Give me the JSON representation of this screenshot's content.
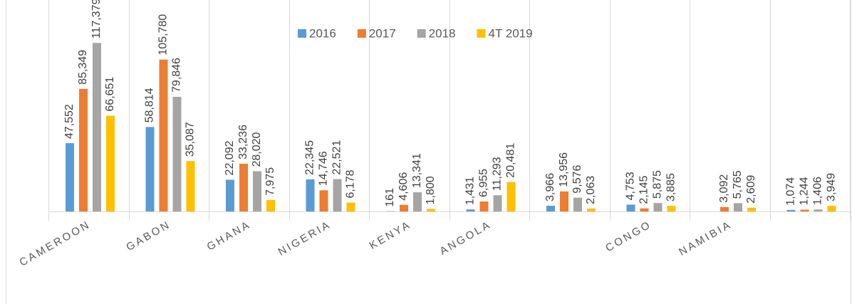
{
  "chart_data": {
    "type": "bar",
    "categories": [
      "CAMEROON",
      "GABON",
      "GHANA",
      "NIGERIA",
      "KENYA",
      "ANGOLA",
      null,
      "CONGO",
      "NAMIBIA",
      null
    ],
    "series": [
      {
        "name": "2016",
        "color": "#5b9bd5",
        "values": [
          47552,
          58814,
          22092,
          22345,
          161,
          1431,
          3966,
          4753,
          null,
          1074
        ],
        "value_labels": [
          "47,552",
          "58,814",
          "22,092",
          "22,345",
          "161",
          "1,431",
          "3,966",
          "4,753",
          null,
          "1,074"
        ]
      },
      {
        "name": "2017",
        "color": "#ed7d31",
        "values": [
          85349,
          105780,
          33236,
          14746,
          4606,
          6955,
          13956,
          2145,
          3092,
          1244
        ],
        "value_labels": [
          "85,349",
          "105,780",
          "33,236",
          "14,746",
          "4,606",
          "6,955",
          "13,956",
          "2,145",
          "3,092",
          "1,244"
        ]
      },
      {
        "name": "2018",
        "color": "#a5a5a5",
        "values": [
          117379,
          79846,
          28020,
          22521,
          13341,
          11293,
          9576,
          5875,
          5765,
          1406
        ],
        "value_labels": [
          "117,379",
          "79,846",
          "28,020",
          "22,521",
          "13,341",
          "11,293",
          "9,576",
          "5,875",
          "5,765",
          "1,406"
        ]
      },
      {
        "name": "4T 2019",
        "color": "#ffc000",
        "values": [
          66651,
          35087,
          7975,
          6178,
          1800,
          20481,
          2063,
          3885,
          2609,
          3949
        ],
        "value_labels": [
          "66,651",
          "35,087",
          "7,975",
          "6,178",
          "1,800",
          "20,481",
          "2,063",
          "3,885",
          "2,609",
          "3,949"
        ]
      }
    ],
    "ylim": [
      0,
      120000
    ]
  }
}
